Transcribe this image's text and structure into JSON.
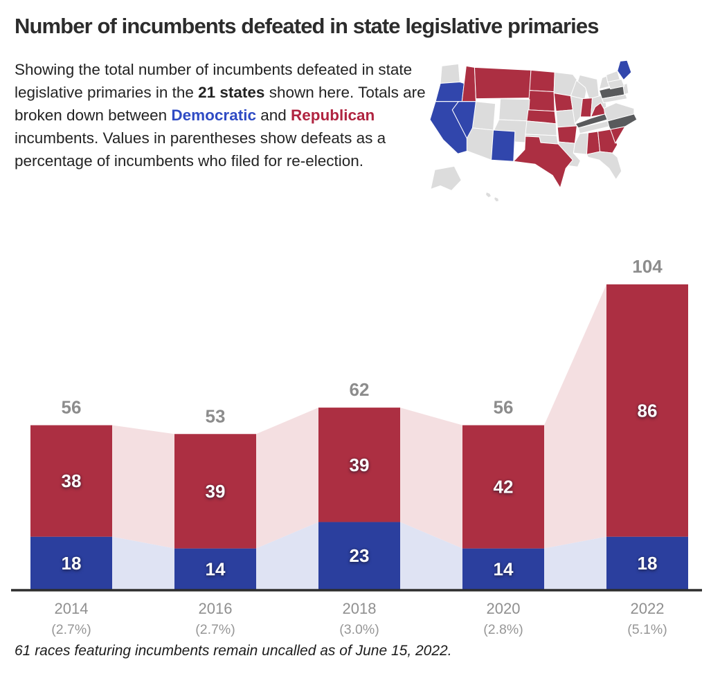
{
  "title": "Number of incumbents defeated in state legislative primaries",
  "intro": {
    "seg1": "Showing the total number of incumbents defeated in state legislative primaries in the ",
    "bold_states": "21 states",
    "seg2": " shown here. Totals are broken down between ",
    "dem_label": "Democratic",
    "seg3": " and ",
    "rep_label": "Republican",
    "seg4": " incumbents. Values in parentheses show defeats as a percentage of incumbents who filed for re-election."
  },
  "footnote": "61 races featuring incumbents remain uncalled as of June 15, 2022.",
  "colors": {
    "republican": "#ac2f42",
    "democratic": "#2b3f9e",
    "republican_band": "#f4dfe1",
    "democratic_band": "#dfe3f3",
    "map_dem": "#3146ac",
    "map_rep": "#ac2f42",
    "map_dark": "#595a5c",
    "map_other": "#dcdcdc",
    "total_label": "#8c8c8c",
    "axis_label": "#8f8f8f",
    "pct_label": "#969696",
    "dem_text": "#2f4bc4",
    "rep_text": "#b02440",
    "axis_line": "#2d2d2d"
  },
  "chart_data": {
    "type": "bar",
    "subtype": "stacked-bars-with-flow-bands",
    "title": "Number of incumbents defeated in state legislative primaries",
    "categories": [
      "2014",
      "2016",
      "2018",
      "2020",
      "2022"
    ],
    "x_sublabels": [
      "(2.7%)",
      "(2.7%)",
      "(3.0%)",
      "(2.8%)",
      "(5.1%)"
    ],
    "series": [
      {
        "name": "Democratic",
        "color": "#2b3f9e",
        "values": [
          18,
          14,
          23,
          14,
          18
        ]
      },
      {
        "name": "Republican",
        "color": "#ac2f42",
        "values": [
          38,
          39,
          39,
          42,
          86
        ]
      }
    ],
    "totals": [
      56,
      53,
      62,
      56,
      104
    ],
    "ylim": [
      0,
      104
    ],
    "grid": false,
    "legend": "none"
  },
  "map": {
    "blue_states": [
      "CA",
      "OR",
      "NV",
      "NM",
      "ME"
    ],
    "red_states": [
      "MT",
      "ID",
      "ND",
      "SD",
      "NE",
      "IA",
      "IN",
      "WV",
      "TX",
      "AR",
      "AL",
      "GA",
      "SC"
    ],
    "dark_states": [
      "PA",
      "KY",
      "NC"
    ]
  }
}
